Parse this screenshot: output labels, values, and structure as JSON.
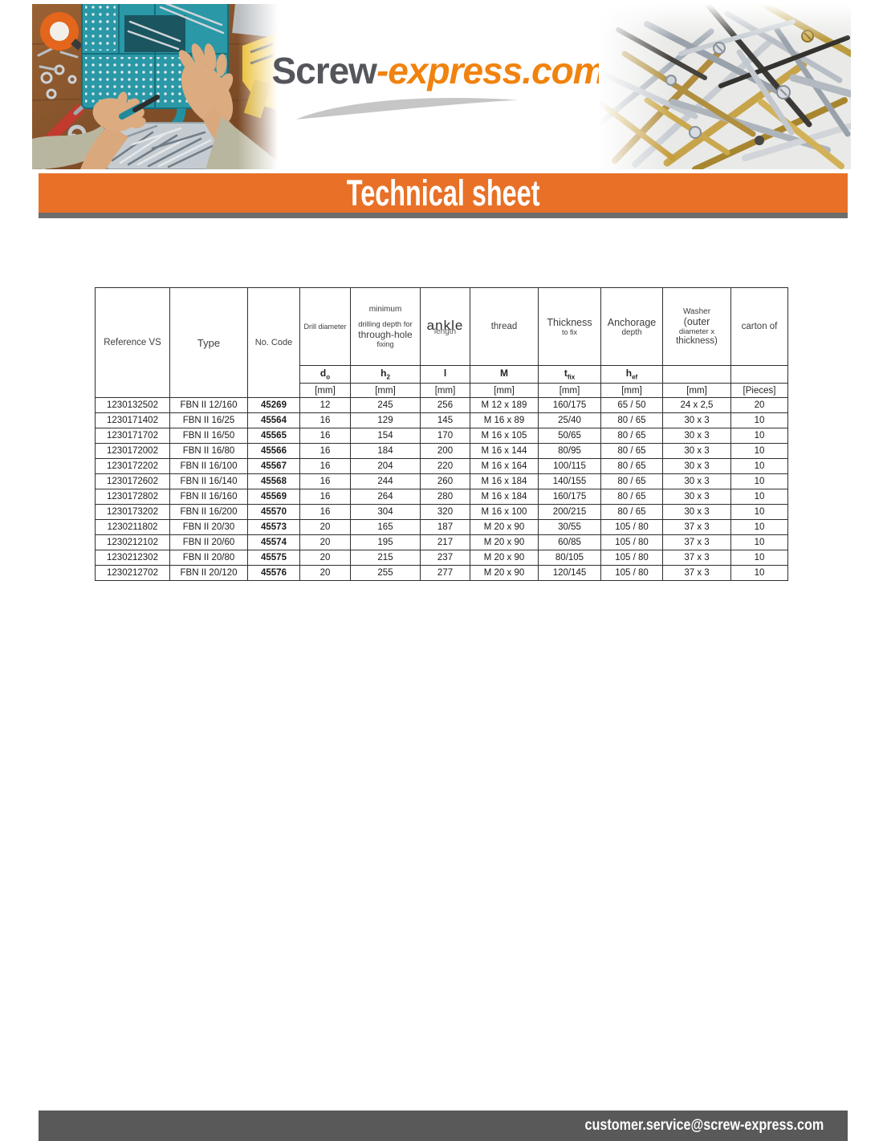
{
  "header": {
    "logo_part1": "Screw",
    "logo_part2": "-express.com",
    "banner_title": "Technical sheet"
  },
  "footer": {
    "email": "customer.service@screw-express.com"
  },
  "colors": {
    "banner_orange": "#E87127",
    "logo_orange": "#F0830F",
    "logo_gray": "#54565B",
    "footer_gray": "#595959",
    "divider_gray": "#6D6D6D"
  },
  "table": {
    "header": {
      "reference": "Reference VS",
      "type": "Type",
      "no_code": "No. Code",
      "drill_diameter": "Drill diameter",
      "min_depth_line1": "minimum",
      "min_depth_line2": "drilling depth for",
      "min_depth_line3": "through-hole",
      "min_depth_line4": "fixing",
      "ankle_overlay": "ankle",
      "length_label": "length",
      "thread": "thread",
      "thickness_line1": "Thickness",
      "thickness_line2": "to fix",
      "anchorage_line1": "Anchorage",
      "anchorage_line2": "depth",
      "washer_line1": "Washer",
      "washer_line2": "(outer",
      "washer_line3": "diameter x",
      "washer_line4": "thickness)",
      "carton": "carton of"
    },
    "symbols": [
      {
        "main": "d",
        "sub": "o"
      },
      {
        "main": "h",
        "sub": "2"
      },
      {
        "main": "l",
        "sub": ""
      },
      {
        "main": "M",
        "sub": ""
      },
      {
        "main": "t",
        "sub": "fix"
      },
      {
        "main": "h",
        "sub": "ef"
      },
      {
        "main": "",
        "sub": ""
      },
      {
        "main": "",
        "sub": ""
      }
    ],
    "units": [
      "[mm]",
      "[mm]",
      "[mm]",
      "[mm]",
      "[mm]",
      "[mm]",
      "[mm]",
      "[Pieces]"
    ],
    "rows": [
      [
        "1230132502",
        "FBN II 12/160",
        "45269",
        "12",
        "245",
        "256",
        "M 12 x 189",
        "160/175",
        "65 / 50",
        "24 x 2,5",
        "20"
      ],
      [
        "1230171402",
        "FBN II 16/25",
        "45564",
        "16",
        "129",
        "145",
        "M 16 x 89",
        "25/40",
        "80 / 65",
        "30 x 3",
        "10"
      ],
      [
        "1230171702",
        "FBN II 16/50",
        "45565",
        "16",
        "154",
        "170",
        "M 16 x 105",
        "50/65",
        "80 / 65",
        "30 x 3",
        "10"
      ],
      [
        "1230172002",
        "FBN II 16/80",
        "45566",
        "16",
        "184",
        "200",
        "M 16 x 144",
        "80/95",
        "80 / 65",
        "30 x 3",
        "10"
      ],
      [
        "1230172202",
        "FBN II 16/100",
        "45567",
        "16",
        "204",
        "220",
        "M 16 x 164",
        "100/115",
        "80 / 65",
        "30 x 3",
        "10"
      ],
      [
        "1230172602",
        "FBN II 16/140",
        "45568",
        "16",
        "244",
        "260",
        "M 16 x 184",
        "140/155",
        "80 / 65",
        "30 x 3",
        "10"
      ],
      [
        "1230172802",
        "FBN II 16/160",
        "45569",
        "16",
        "264",
        "280",
        "M 16 x 184",
        "160/175",
        "80 / 65",
        "30 x 3",
        "10"
      ],
      [
        "1230173202",
        "FBN II 16/200",
        "45570",
        "16",
        "304",
        "320",
        "M 16 x 100",
        "200/215",
        "80 / 65",
        "30 x 3",
        "10"
      ],
      [
        "1230211802",
        "FBN II 20/30",
        "45573",
        "20",
        "165",
        "187",
        "M 20 x 90",
        "30/55",
        "105 / 80",
        "37 x 3",
        "10"
      ],
      [
        "1230212102",
        "FBN II 20/60",
        "45574",
        "20",
        "195",
        "217",
        "M 20 x 90",
        "60/85",
        "105 / 80",
        "37 x 3",
        "10"
      ],
      [
        "1230212302",
        "FBN II 20/80",
        "45575",
        "20",
        "215",
        "237",
        "M 20 x 90",
        "80/105",
        "105 / 80",
        "37 x 3",
        "10"
      ],
      [
        "1230212702",
        "FBN II 20/120",
        "45576",
        "20",
        "255",
        "277",
        "M 20 x 90",
        "120/145",
        "105 / 80",
        "37 x 3",
        "10"
      ]
    ]
  }
}
